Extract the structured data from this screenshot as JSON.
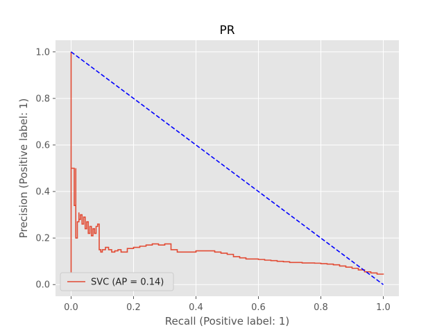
{
  "chart_data": {
    "type": "line",
    "title": "PR",
    "xlabel": "Recall (Positive label: 1)",
    "ylabel": "Precision (Positive label: 1)",
    "xlim": [
      -0.05,
      1.05
    ],
    "ylim": [
      -0.05,
      1.05
    ],
    "xticks": [
      "0.0",
      "0.2",
      "0.4",
      "0.6",
      "0.8",
      "1.0"
    ],
    "yticks": [
      "0.0",
      "0.2",
      "0.4",
      "0.6",
      "0.8",
      "1.0"
    ],
    "grid": true,
    "legend_position": "lower-left",
    "series": [
      {
        "name": "SVC (AP = 0.14)",
        "color": "#E24A33",
        "style": "step",
        "x": [
          0.0,
          0.0,
          0.0,
          0.002,
          0.002,
          0.005,
          0.01,
          0.01,
          0.015,
          0.015,
          0.02,
          0.025,
          0.025,
          0.03,
          0.035,
          0.04,
          0.045,
          0.05,
          0.055,
          0.06,
          0.065,
          0.07,
          0.075,
          0.08,
          0.085,
          0.09,
          0.095,
          0.1,
          0.11,
          0.12,
          0.13,
          0.14,
          0.15,
          0.16,
          0.18,
          0.2,
          0.22,
          0.24,
          0.26,
          0.28,
          0.3,
          0.32,
          0.34,
          0.36,
          0.38,
          0.4,
          0.42,
          0.44,
          0.46,
          0.48,
          0.5,
          0.52,
          0.54,
          0.56,
          0.58,
          0.6,
          0.62,
          0.64,
          0.66,
          0.68,
          0.7,
          0.72,
          0.74,
          0.76,
          0.78,
          0.8,
          0.82,
          0.84,
          0.86,
          0.88,
          0.9,
          0.92,
          0.94,
          0.96,
          0.98,
          1.0
        ],
        "y": [
          1.0,
          0.05,
          0.5,
          0.5,
          0.5,
          0.5,
          0.5,
          0.34,
          0.5,
          0.2,
          0.27,
          0.31,
          0.28,
          0.3,
          0.26,
          0.29,
          0.24,
          0.27,
          0.22,
          0.25,
          0.21,
          0.24,
          0.22,
          0.25,
          0.26,
          0.15,
          0.14,
          0.15,
          0.16,
          0.15,
          0.14,
          0.145,
          0.15,
          0.14,
          0.155,
          0.16,
          0.165,
          0.17,
          0.175,
          0.17,
          0.175,
          0.15,
          0.14,
          0.14,
          0.14,
          0.145,
          0.145,
          0.145,
          0.14,
          0.135,
          0.13,
          0.12,
          0.115,
          0.11,
          0.11,
          0.108,
          0.105,
          0.103,
          0.1,
          0.098,
          0.095,
          0.095,
          0.093,
          0.093,
          0.092,
          0.09,
          0.088,
          0.085,
          0.08,
          0.075,
          0.07,
          0.063,
          0.055,
          0.05,
          0.045,
          0.043
        ]
      },
      {
        "name": "",
        "color": "#0000ff",
        "style": "dashed",
        "x": [
          0.0,
          1.0
        ],
        "y": [
          1.0,
          0.0
        ]
      }
    ]
  }
}
